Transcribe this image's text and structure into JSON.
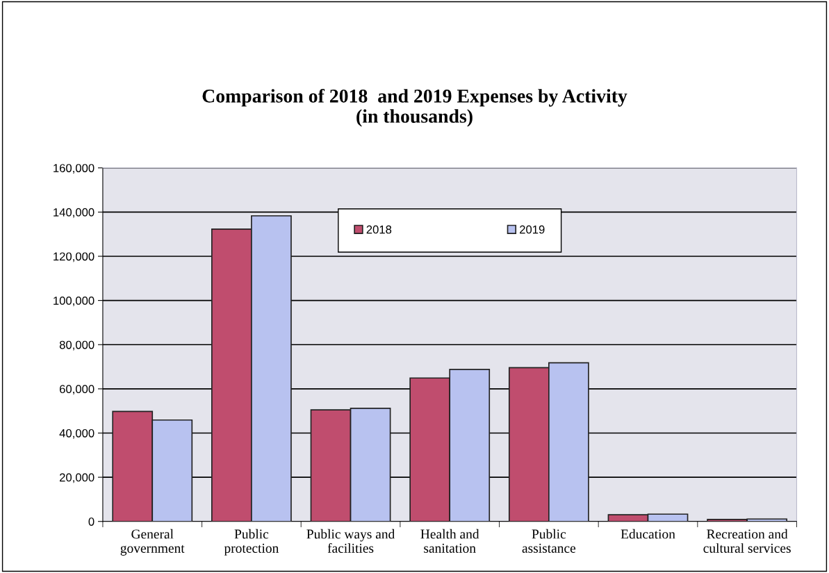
{
  "chart_data": {
    "type": "bar",
    "title": "Comparison of 2018  and 2019 Expenses by Activity\n(in thousands)",
    "categories": [
      "General\ngovernment",
      "Public\nprotection",
      "Public ways and\nfacilities",
      "Health and\nsanitation",
      "Public\nassistance",
      "Education",
      "Recreation and\ncultural services"
    ],
    "series": [
      {
        "name": "2018",
        "color": "#c04d6e",
        "values": [
          49800,
          132300,
          50500,
          64900,
          69600,
          3000,
          900
        ]
      },
      {
        "name": "2019",
        "color": "#b8c2f0",
        "values": [
          45900,
          138300,
          51200,
          68800,
          71800,
          3300,
          1100
        ]
      }
    ],
    "ylim": [
      0,
      160000
    ],
    "yticks": [
      {
        "value": 0,
        "label": "0"
      },
      {
        "value": 20000,
        "label": "20,000"
      },
      {
        "value": 40000,
        "label": "40,000"
      },
      {
        "value": 60000,
        "label": "60,000"
      },
      {
        "value": 80000,
        "label": "80,000"
      },
      {
        "value": 100000,
        "label": "100,000"
      },
      {
        "value": 120000,
        "label": "120,000"
      },
      {
        "value": 140000,
        "label": "140,000"
      },
      {
        "value": 160000,
        "label": "160,000"
      }
    ],
    "grid": "y",
    "legend": "top"
  }
}
